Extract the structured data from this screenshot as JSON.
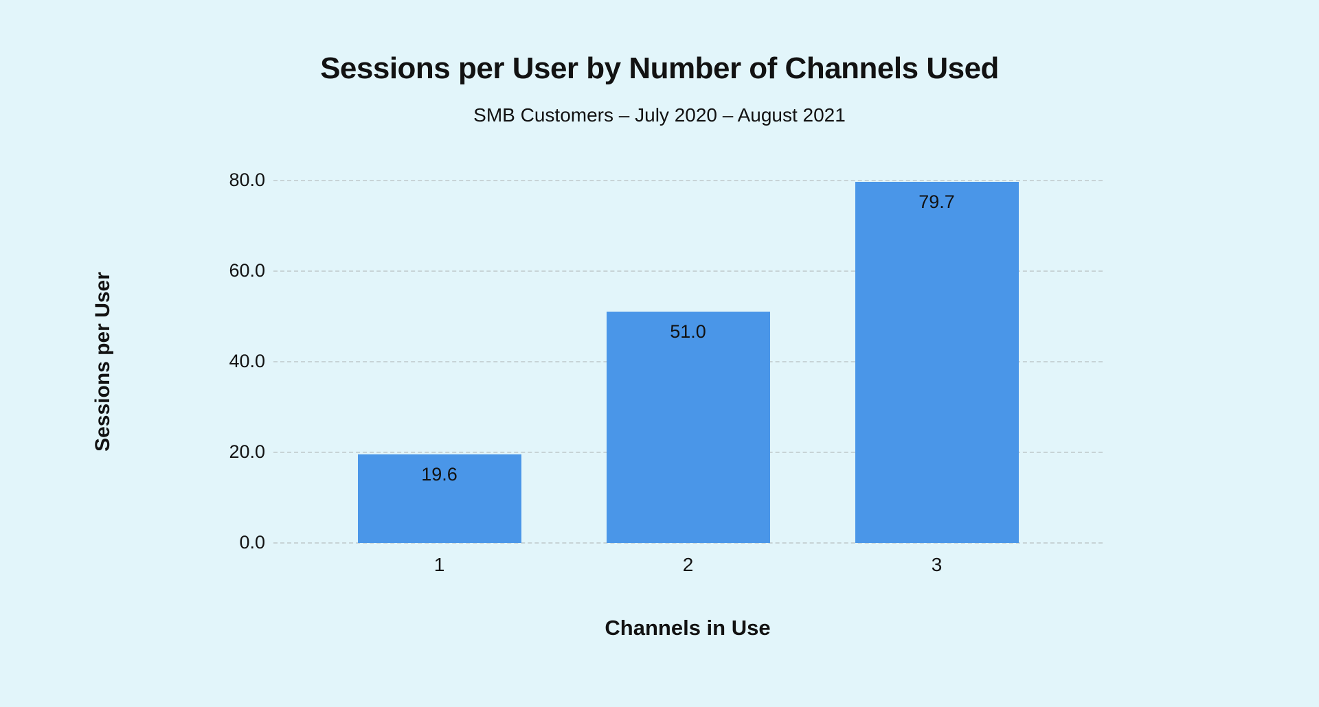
{
  "page": {
    "background_color": "#e2f5fa",
    "text_color": "#121212"
  },
  "chart_data": {
    "type": "bar",
    "title": "Sessions per User by Number of Channels Used",
    "subtitle": "SMB Customers – July 2020 – August 2021",
    "xlabel": "Channels in Use",
    "ylabel": "Sessions per User",
    "categories": [
      "1",
      "2",
      "3"
    ],
    "values": [
      19.6,
      51.0,
      79.7
    ],
    "value_labels": [
      "19.6",
      "51.0",
      "79.7"
    ],
    "ylim": [
      0,
      80
    ],
    "yticks": [
      0,
      20,
      40,
      60,
      80
    ],
    "ytick_labels": [
      "0.0",
      "20.0",
      "40.0",
      "60.0",
      "80.0"
    ],
    "grid": "horizontal gridlines on",
    "legend": "none",
    "bar_color": "#4a96e8",
    "grid_color": "#c7d3d6"
  }
}
